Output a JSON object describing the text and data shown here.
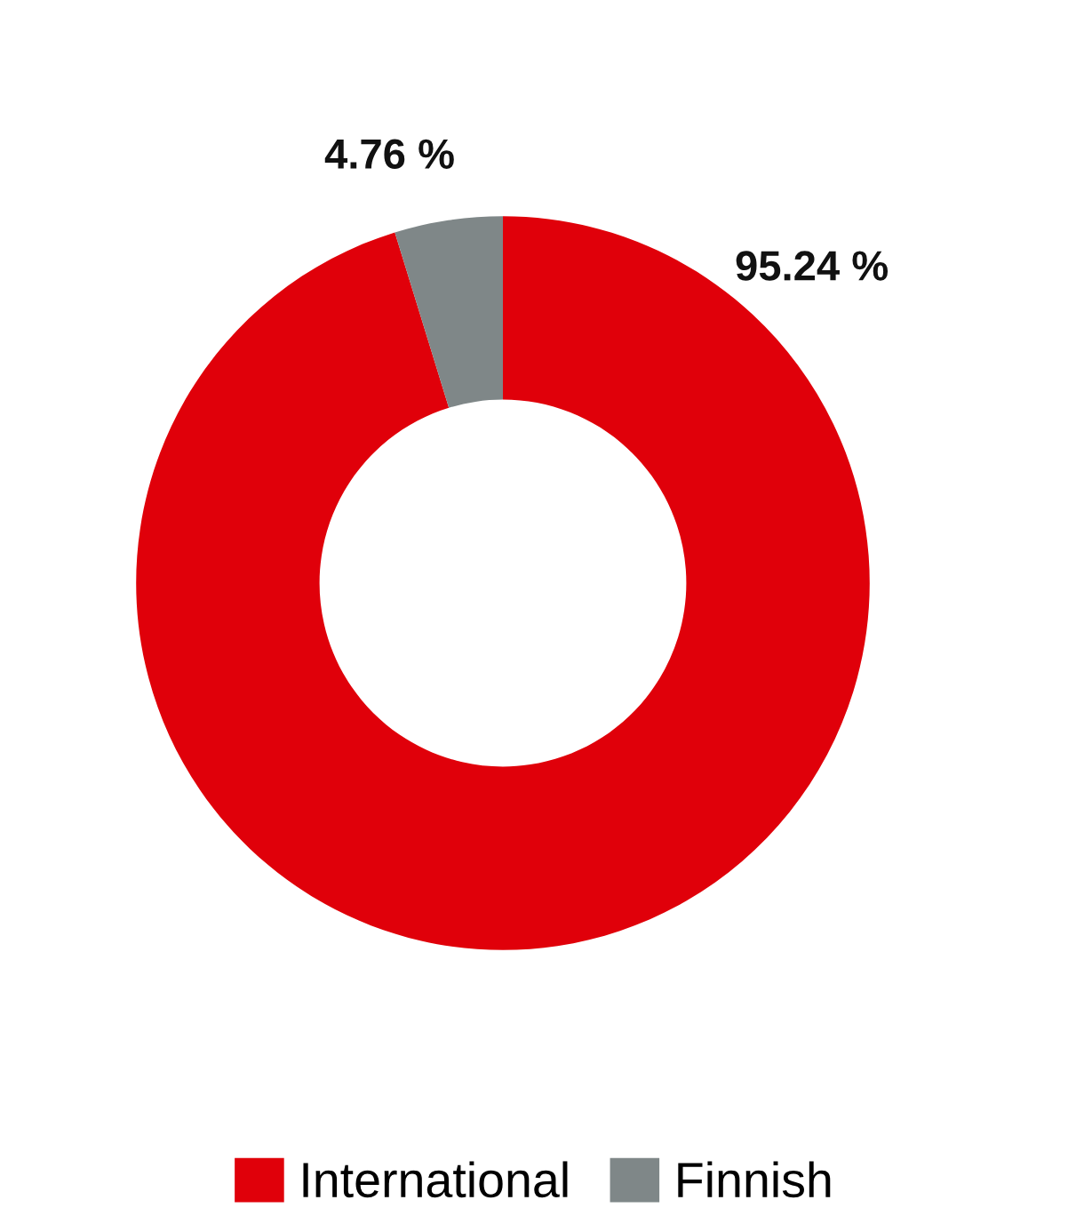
{
  "chart_data": {
    "type": "donut",
    "categories": [
      "International",
      "Finnish"
    ],
    "values": [
      95.24,
      4.76
    ],
    "colors": [
      "#e0000a",
      "#7f8788"
    ],
    "value_labels": [
      "95.24 %",
      "4.76 %"
    ],
    "legend": "bottom"
  }
}
